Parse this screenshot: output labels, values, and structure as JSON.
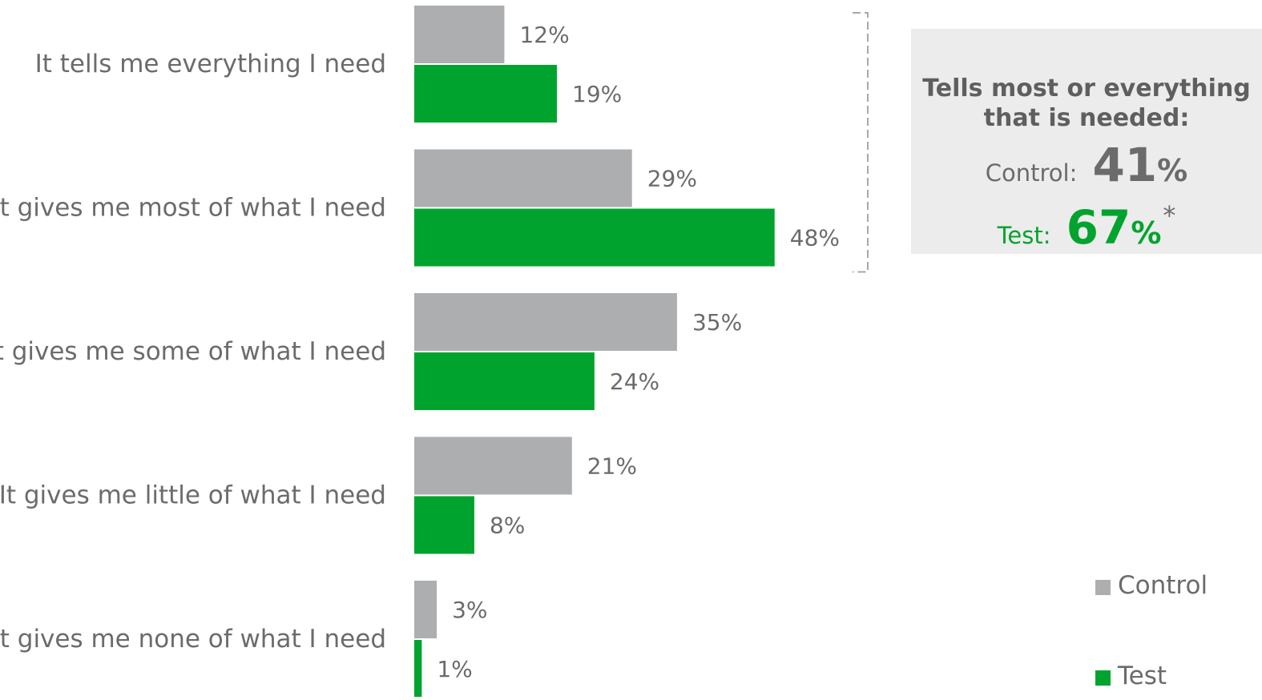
{
  "chart_data": {
    "type": "bar",
    "orientation": "horizontal",
    "categories": [
      "It tells me everything I need",
      "It gives me most of what I need",
      "It gives me some of what I need",
      "It gives me little of what I need",
      "It gives me none of what I need"
    ],
    "series": [
      {
        "name": "Control",
        "values": [
          12,
          29,
          35,
          21,
          3
        ],
        "labels": [
          "12%",
          "29%",
          "35%",
          "21%",
          "3%"
        ],
        "color": "#adaeb0"
      },
      {
        "name": "Test",
        "values": [
          19,
          48,
          24,
          8,
          1
        ],
        "labels": [
          "19%",
          "48%",
          "24%",
          "8%",
          "1%"
        ],
        "color": "#00a32e"
      }
    ],
    "value_unit": "%",
    "xlim": [
      0,
      50
    ],
    "grid": false,
    "legend_placement": "bottom-right",
    "bracket_groups": [
      0,
      1
    ]
  },
  "summary": {
    "title": "Tells most or everything that is needed:",
    "control_label": "Control:",
    "control_value": "41",
    "test_label": "Test:",
    "test_value": "67",
    "percent_sign": "%",
    "significance_marker": "*"
  },
  "legend": {
    "control": "Control",
    "test": "Test"
  }
}
